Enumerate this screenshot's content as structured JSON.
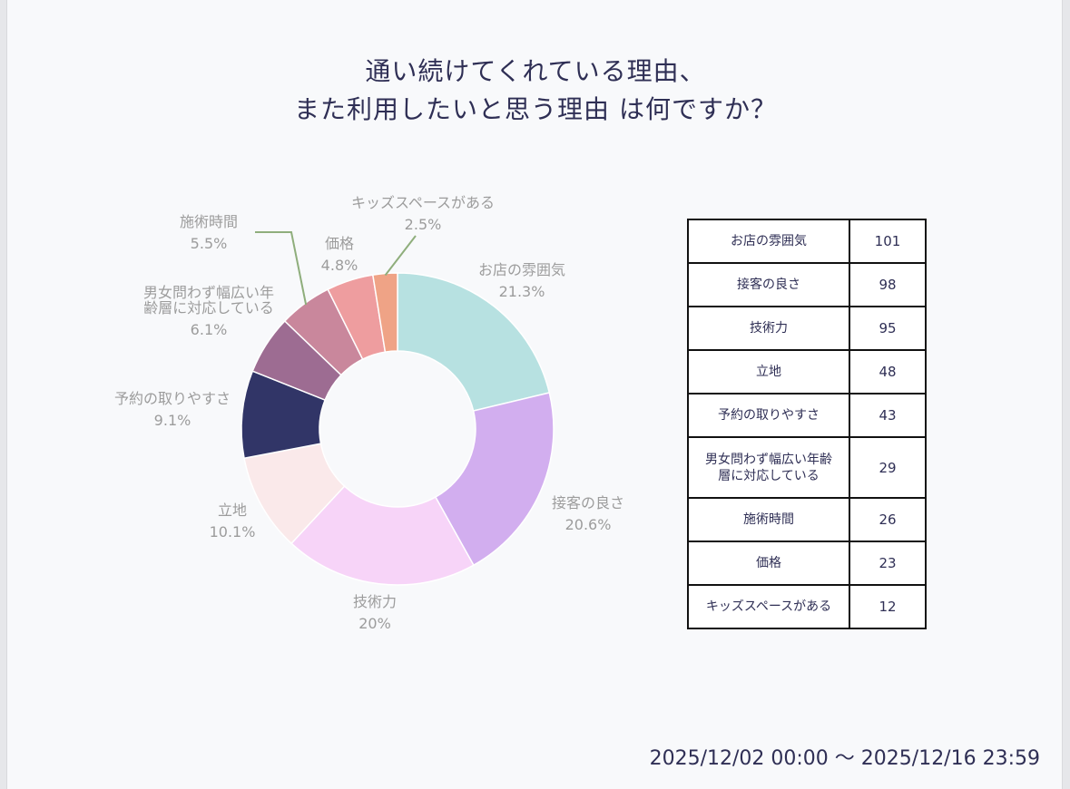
{
  "title_lines": [
    "通い続けてくれている理由、",
    "また利用したいと思う理由 は何ですか？"
  ],
  "date_range": "2025/12/02 00:00 ～ 2025/12/16 23:59",
  "chart_data": {
    "type": "donut",
    "title": "通い続けてくれている理由、また利用したいと思う理由 は何ですか？",
    "slices": [
      {
        "label": "お店の雰囲気",
        "value": 101,
        "percent": "21.3%",
        "color": "#b7e1e1"
      },
      {
        "label": "接客の良さ",
        "value": 98,
        "percent": "20.6%",
        "color": "#d2aeef"
      },
      {
        "label": "技術力",
        "value": 95,
        "percent": "20%",
        "color": "#f7d4f8"
      },
      {
        "label": "立地",
        "value": 48,
        "percent": "10.1%",
        "color": "#fae9ea"
      },
      {
        "label": "予約の取りやすさ",
        "value": 43,
        "percent": "9.1%",
        "color": "#313567"
      },
      {
        "label": "男女問わず幅広い年齢層に対応している",
        "value": 29,
        "percent": "6.1%",
        "color": "#9d6c92"
      },
      {
        "label": "施術時間",
        "value": 26,
        "percent": "5.5%",
        "color": "#c9879c"
      },
      {
        "label": "価格",
        "value": 23,
        "percent": "4.8%",
        "color": "#ee9d9f"
      },
      {
        "label": "キッズスペースがある",
        "value": 12,
        "percent": "2.5%",
        "color": "#efa386"
      }
    ],
    "leader_line_color": "#8fae7c"
  }
}
